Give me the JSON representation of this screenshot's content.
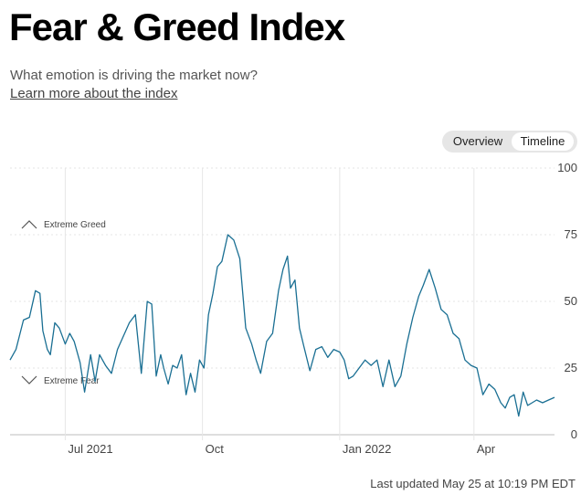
{
  "header": {
    "title": "Fear & Greed Index",
    "subtitle": "What emotion is driving the market now?",
    "learn_more": "Learn more about the index"
  },
  "toggle": {
    "overview_label": "Overview",
    "timeline_label": "Timeline",
    "selected": "Timeline"
  },
  "footer": {
    "last_updated": "Last updated May 25 at 10:19 PM EDT"
  },
  "chart_data": {
    "type": "line",
    "ylim": [
      0,
      100
    ],
    "y_ticks": [
      "100",
      "75",
      "50",
      "25",
      "0"
    ],
    "x_ticks": [
      {
        "label": "Jul 2021",
        "date": "2021-07-01"
      },
      {
        "label": "Oct",
        "date": "2021-10-01"
      },
      {
        "label": "Jan 2022",
        "date": "2022-01-01"
      },
      {
        "label": "Apr",
        "date": "2022-04-01"
      }
    ],
    "bands": [
      {
        "label": "Extreme Greed",
        "icon": "chevron-up-icon"
      },
      {
        "label": "Extreme Fear",
        "icon": "chevron-down-icon"
      }
    ],
    "grid": true,
    "line_color": "#1a6f93",
    "series": [
      {
        "x": [
          "2021-05-25",
          "2021-05-29",
          "2021-06-03",
          "2021-06-07",
          "2021-06-11",
          "2021-06-14",
          "2021-06-16",
          "2021-06-19",
          "2021-06-21",
          "2021-06-24",
          "2021-06-27",
          "2021-07-01",
          "2021-07-04",
          "2021-07-07",
          "2021-07-11",
          "2021-07-14",
          "2021-07-18",
          "2021-07-21",
          "2021-07-24",
          "2021-07-28",
          "2021-08-01",
          "2021-08-05",
          "2021-08-09",
          "2021-08-13",
          "2021-08-17",
          "2021-08-21",
          "2021-08-25",
          "2021-08-28",
          "2021-08-31",
          "2021-09-03",
          "2021-09-05",
          "2021-09-08",
          "2021-09-11",
          "2021-09-14",
          "2021-09-17",
          "2021-09-20",
          "2021-09-23",
          "2021-09-26",
          "2021-09-29",
          "2021-10-02",
          "2021-10-05",
          "2021-10-08",
          "2021-10-11",
          "2021-10-14",
          "2021-10-18",
          "2021-10-22",
          "2021-10-26",
          "2021-10-30",
          "2021-11-03",
          "2021-11-06",
          "2021-11-09",
          "2021-11-13",
          "2021-11-17",
          "2021-11-21",
          "2021-11-24",
          "2021-11-27",
          "2021-11-29",
          "2021-12-02",
          "2021-12-05",
          "2021-12-08",
          "2021-12-12",
          "2021-12-16",
          "2021-12-20",
          "2021-12-24",
          "2021-12-28",
          "2022-01-01",
          "2022-01-04",
          "2022-01-07",
          "2022-01-10",
          "2022-01-14",
          "2022-01-18",
          "2022-01-22",
          "2022-01-26",
          "2022-01-30",
          "2022-02-03",
          "2022-02-07",
          "2022-02-11",
          "2022-02-15",
          "2022-02-19",
          "2022-02-23",
          "2022-02-26",
          "2022-03-02",
          "2022-03-06",
          "2022-03-10",
          "2022-03-14",
          "2022-03-18",
          "2022-03-22",
          "2022-03-26",
          "2022-03-30",
          "2022-04-03",
          "2022-04-07",
          "2022-04-11",
          "2022-04-15",
          "2022-04-19",
          "2022-04-22",
          "2022-04-25",
          "2022-04-28",
          "2022-05-01",
          "2022-05-04",
          "2022-05-07",
          "2022-05-10",
          "2022-05-13",
          "2022-05-17",
          "2022-05-21",
          "2022-05-25"
        ],
        "values": [
          28,
          32,
          43,
          44,
          54,
          53,
          39,
          32,
          30,
          42,
          40,
          34,
          38,
          35,
          27,
          16,
          30,
          20,
          30,
          26,
          23,
          32,
          37,
          42,
          45,
          23,
          50,
          49,
          22,
          30,
          25,
          19,
          26,
          25,
          30,
          15,
          23,
          16,
          28,
          25,
          45,
          53,
          63,
          65,
          75,
          73,
          66,
          40,
          34,
          28,
          23,
          35,
          38,
          54,
          62,
          67,
          55,
          58,
          40,
          33,
          24,
          32,
          33,
          29,
          32,
          31,
          28,
          21,
          22,
          25,
          28,
          26,
          28,
          18,
          28,
          18,
          22,
          34,
          44,
          52,
          56,
          62,
          55,
          47,
          45,
          38,
          36,
          28,
          26,
          25,
          15,
          19,
          17,
          12,
          10,
          14,
          15,
          7,
          16,
          11,
          12,
          13,
          12,
          13,
          14
        ]
      }
    ]
  }
}
